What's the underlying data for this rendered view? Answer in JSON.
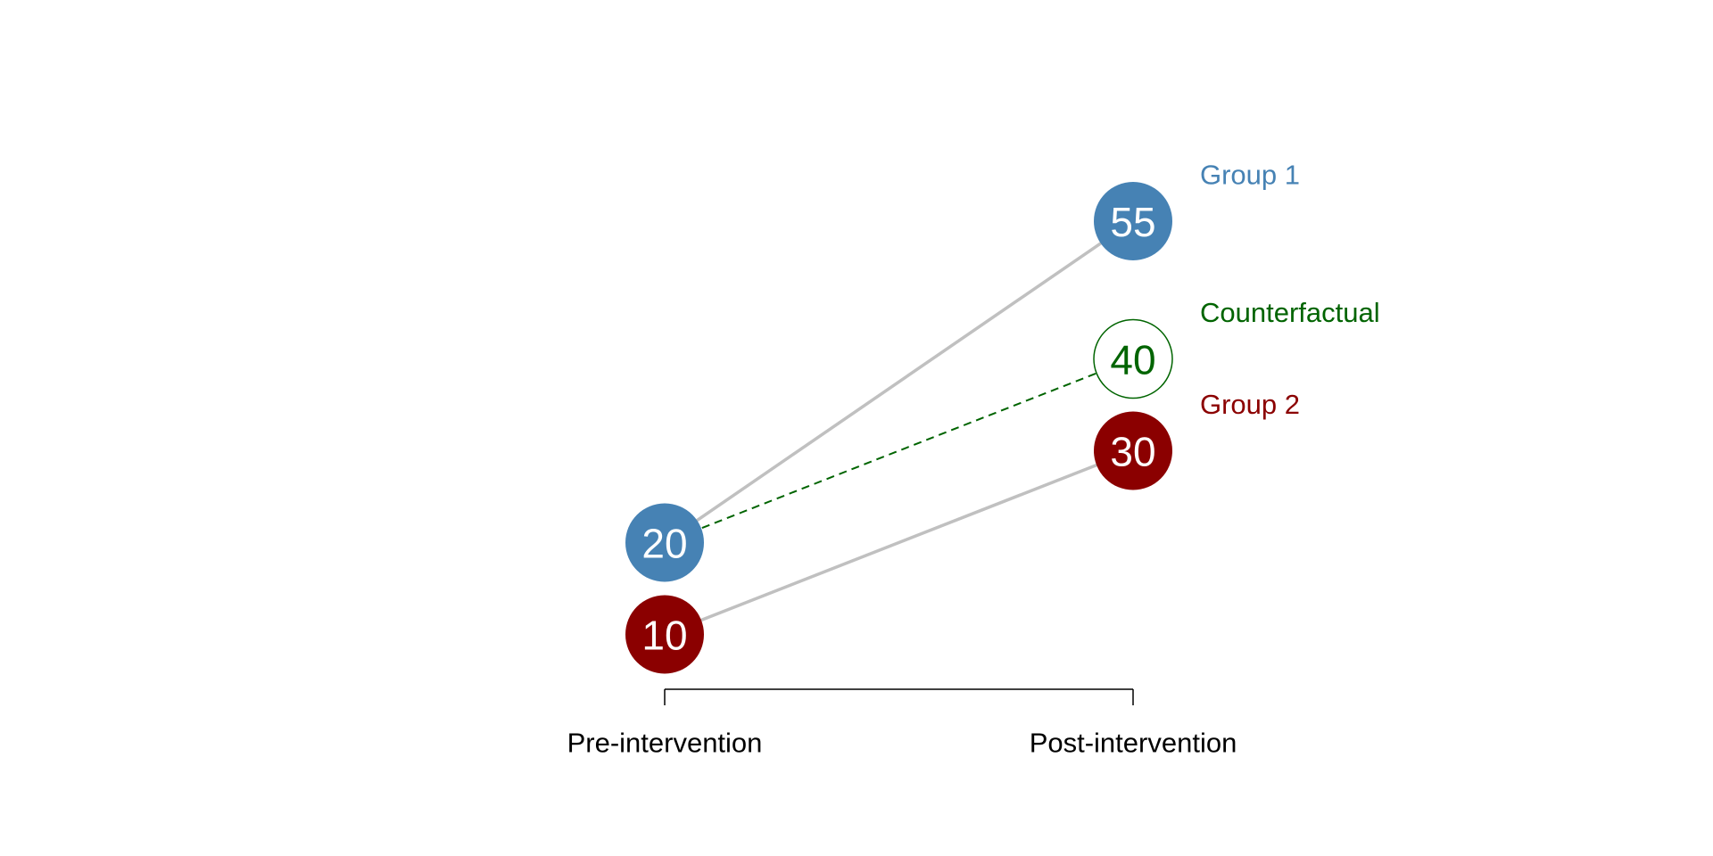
{
  "chart_data": {
    "type": "line",
    "categories": [
      "Pre-intervention",
      "Post-intervention"
    ],
    "series": [
      {
        "name": "Group 1",
        "values": [
          20,
          55
        ],
        "color": "#4682B4",
        "style": "solid-filled",
        "line_color": "#C0C0C0"
      },
      {
        "name": "Counterfactual",
        "values": [
          20,
          40
        ],
        "color": "#006400",
        "style": "dashed-hollow",
        "line_color": "#006400",
        "show_start_marker": false
      },
      {
        "name": "Group 2",
        "values": [
          10,
          30
        ],
        "color": "#8B0000",
        "style": "solid-filled",
        "line_color": "#C0C0C0"
      }
    ],
    "ylim": [
      0,
      62
    ],
    "legend": "right-of-end-points",
    "grid": false
  }
}
